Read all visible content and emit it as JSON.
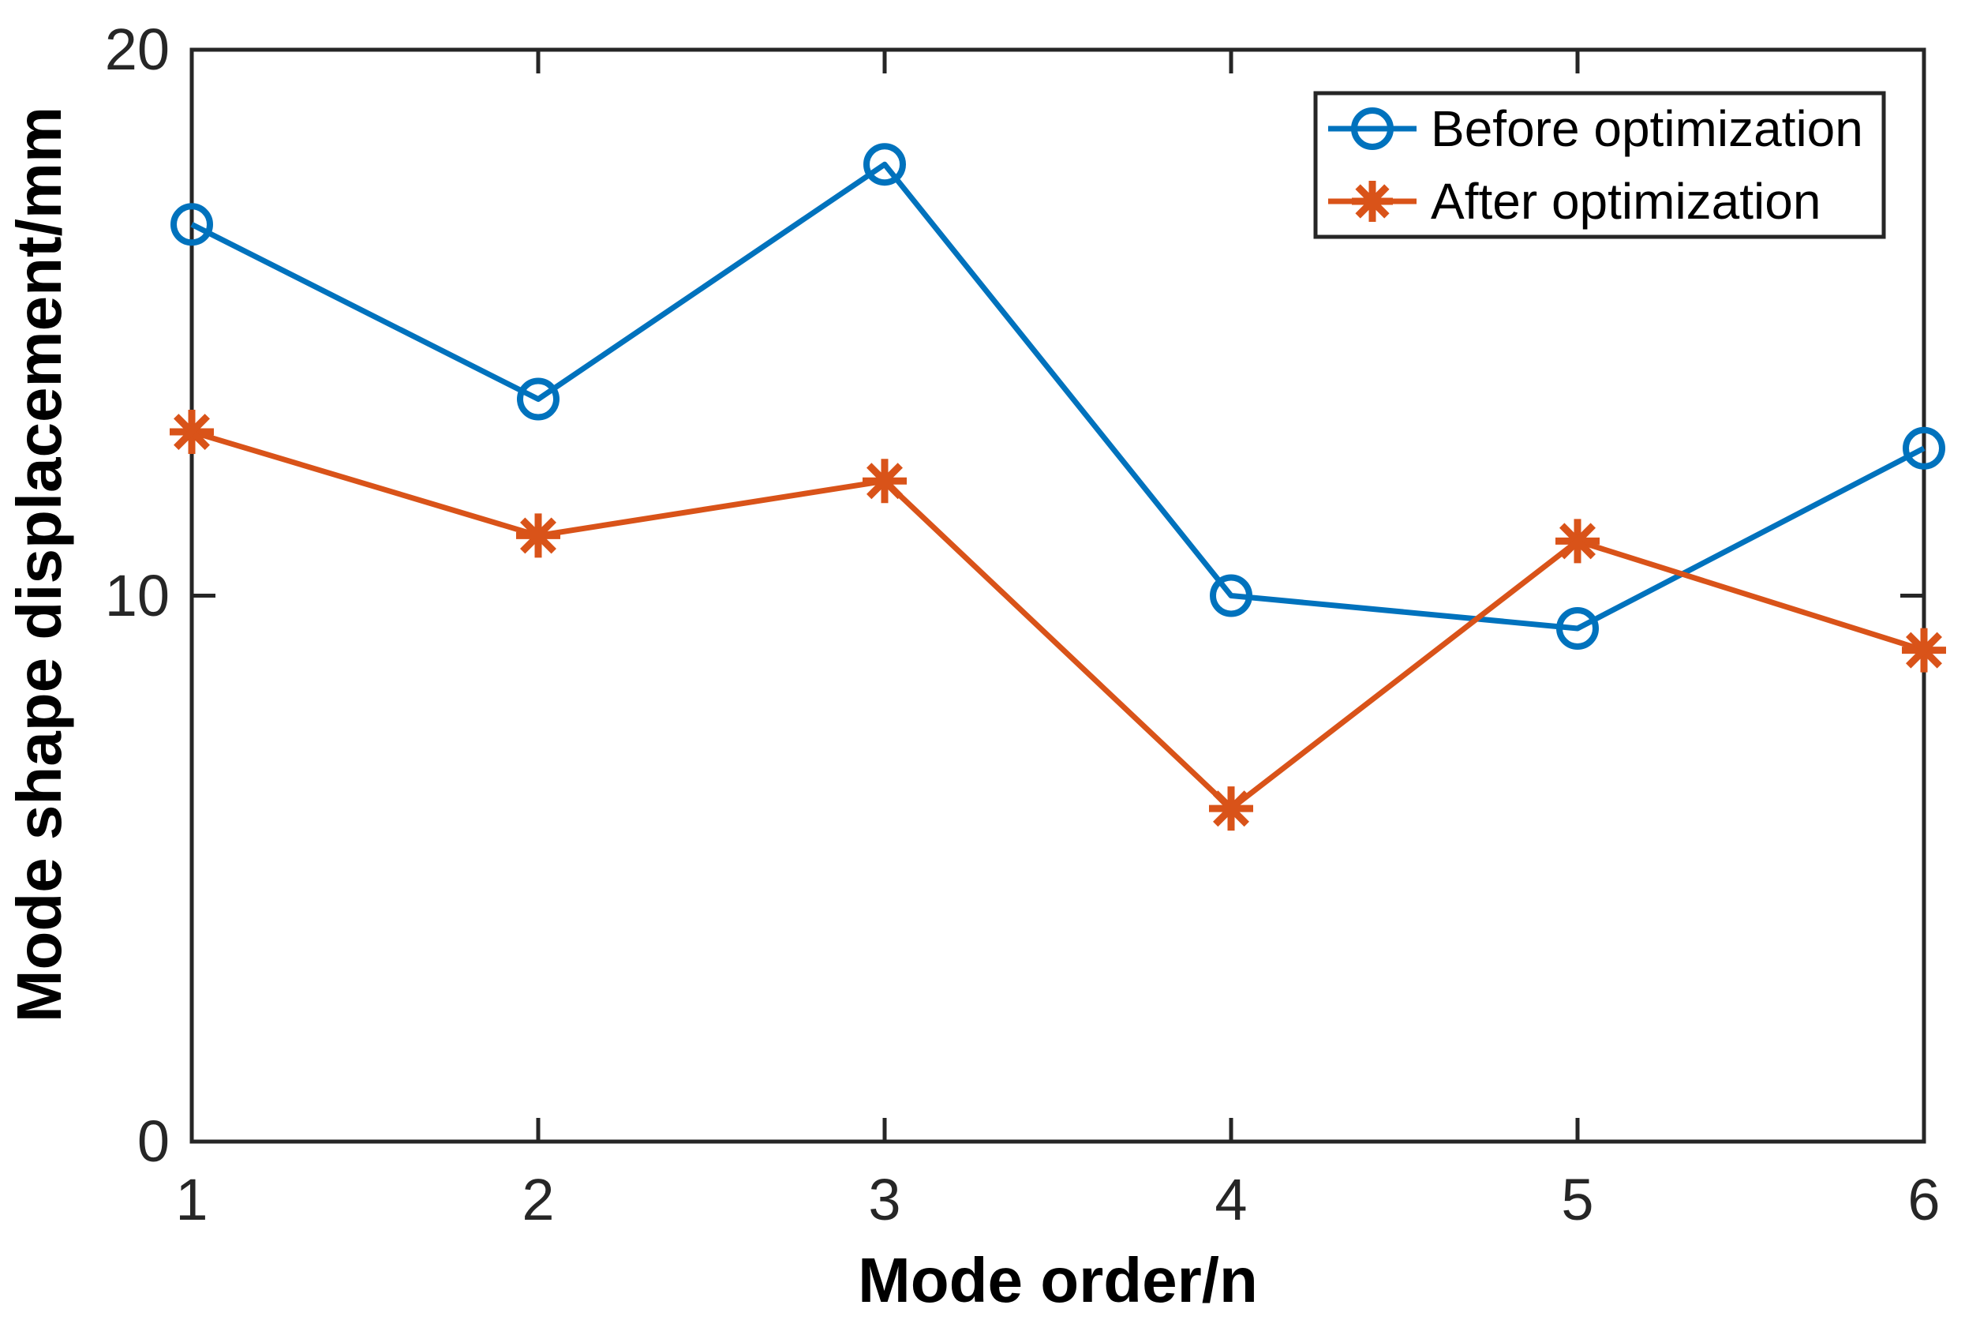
{
  "figure": {
    "background": "#ffffff",
    "axis_color": "#262626",
    "label_color": "#000000"
  },
  "chart_data": {
    "type": "line",
    "title": "",
    "xlabel": "Mode order/n",
    "ylabel": "Mode shape displacement/mm",
    "xlim": [
      1,
      6
    ],
    "ylim": [
      0,
      20
    ],
    "x": [
      1,
      2,
      3,
      4,
      5,
      6
    ],
    "x_tick_labels": [
      "1",
      "2",
      "3",
      "4",
      "5",
      "6"
    ],
    "y_ticks": [
      0,
      10,
      20
    ],
    "y_tick_labels": [
      "0",
      "10",
      "20"
    ],
    "grid": false,
    "legend_position": "top-right",
    "series": [
      {
        "name": "Before optimization",
        "color": "#0072BD",
        "marker": "circle",
        "values": [
          16.8,
          13.6,
          17.9,
          10.0,
          9.4,
          12.7
        ]
      },
      {
        "name": "After optimization",
        "color": "#D95319",
        "marker": "asterisk",
        "values": [
          13.0,
          11.1,
          12.1,
          6.1,
          11.0,
          9.0
        ]
      }
    ]
  }
}
